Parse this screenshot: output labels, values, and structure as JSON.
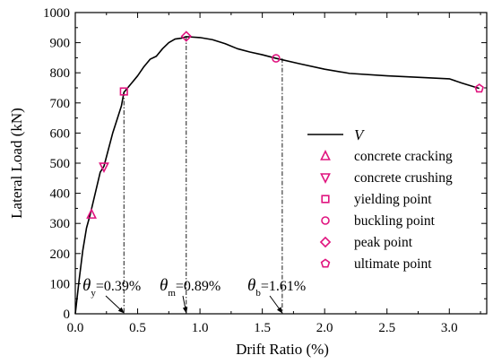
{
  "chart_data": {
    "type": "line",
    "title": "",
    "xlabel": "Drift Ratio (%)",
    "ylabel": "Lateral Load (kN)",
    "xlim": [
      0,
      3.3
    ],
    "ylim": [
      0,
      1000
    ],
    "xticks": [
      "0.0",
      "0.5",
      "1.0",
      "1.5",
      "2.0",
      "2.5",
      "3.0"
    ],
    "yticks": [
      "0",
      "100",
      "200",
      "300",
      "400",
      "500",
      "600",
      "700",
      "800",
      "900",
      "1000"
    ],
    "grid": false,
    "legend_position": "right",
    "series": [
      {
        "name": "V",
        "points": [
          [
            0,
            0
          ],
          [
            0.03,
            110
          ],
          [
            0.06,
            210
          ],
          [
            0.09,
            285
          ],
          [
            0.12,
            330
          ],
          [
            0.16,
            400
          ],
          [
            0.2,
            470
          ],
          [
            0.23,
            490
          ],
          [
            0.3,
            600
          ],
          [
            0.37,
            690
          ],
          [
            0.39,
            735
          ],
          [
            0.45,
            765
          ],
          [
            0.5,
            790
          ],
          [
            0.55,
            820
          ],
          [
            0.6,
            845
          ],
          [
            0.65,
            855
          ],
          [
            0.7,
            880
          ],
          [
            0.75,
            900
          ],
          [
            0.8,
            912
          ],
          [
            0.85,
            915
          ],
          [
            0.89,
            920
          ],
          [
            1.0,
            917
          ],
          [
            1.1,
            910
          ],
          [
            1.2,
            897
          ],
          [
            1.3,
            880
          ],
          [
            1.4,
            869
          ],
          [
            1.5,
            860
          ],
          [
            1.61,
            848
          ],
          [
            1.8,
            830
          ],
          [
            2.0,
            812
          ],
          [
            2.2,
            798
          ],
          [
            2.5,
            790
          ],
          [
            2.8,
            784
          ],
          [
            3.0,
            780
          ],
          [
            3.1,
            766
          ],
          [
            3.24,
            748
          ]
        ]
      }
    ],
    "markers": [
      {
        "name": "concrete cracking",
        "shape": "triangle-up",
        "x": 0.13,
        "y": 330
      },
      {
        "name": "concrete crushing",
        "shape": "triangle-down",
        "x": 0.23,
        "y": 488
      },
      {
        "name": "yielding point",
        "shape": "square",
        "x": 0.39,
        "y": 738
      },
      {
        "name": "buckling point",
        "shape": "circle",
        "x": 1.61,
        "y": 848
      },
      {
        "name": "peak point",
        "shape": "diamond",
        "x": 0.89,
        "y": 921
      },
      {
        "name": "ultimate point",
        "shape": "pentagon",
        "x": 3.24,
        "y": 748
      }
    ],
    "guide_lines": [
      {
        "x": 0.39,
        "y": 738,
        "symbol": "θ",
        "sub": "y",
        "text": "=0.39%"
      },
      {
        "x": 0.89,
        "y": 921,
        "symbol": "θ",
        "sub": "m",
        "text": "=0.89%"
      },
      {
        "x": 1.66,
        "y": 848,
        "symbol": "θ",
        "sub": "b",
        "text": "=1.61%"
      }
    ],
    "colors": {
      "line": "#000000",
      "marker": "#e0147f"
    }
  }
}
